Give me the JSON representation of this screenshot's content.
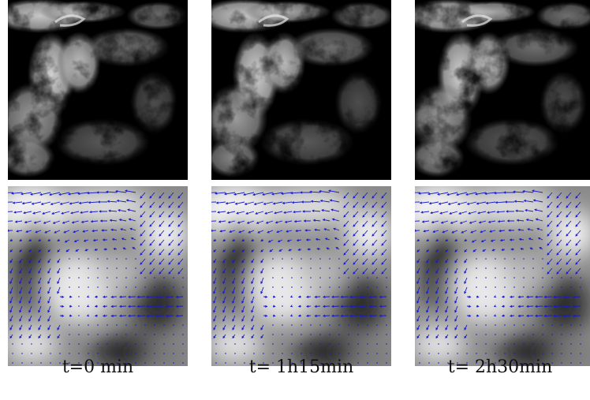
{
  "figure": {
    "columns": [
      {
        "caption": "t=0 min"
      },
      {
        "caption": "t= 1h15min"
      },
      {
        "caption": "t= 2h30min"
      }
    ],
    "rows": [
      {
        "content": "satellite cloud imagery (grayscale)"
      },
      {
        "content": "motion vector field (blue arrows) over smoothed grayscale field"
      }
    ],
    "colors": {
      "background": "#ffffff",
      "vector_color": "#1a1acc",
      "cloud_dark": "#000000",
      "cloud_bright": "#d8d8d8"
    }
  }
}
